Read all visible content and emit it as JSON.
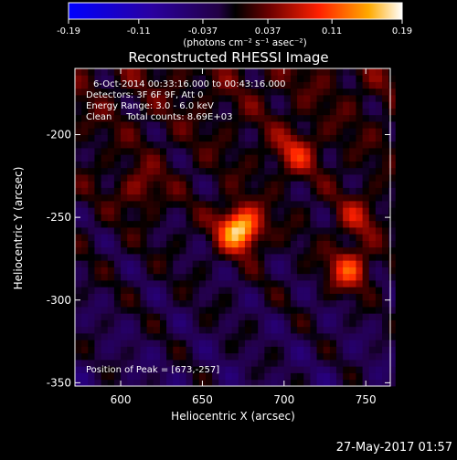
{
  "chart_data": {
    "type": "heatmap",
    "title": "Reconstructed RHESSI Image",
    "xlabel": "Heliocentric X (arcsec)",
    "ylabel": "Heliocentric Y (arcsec)",
    "xlim": [
      572,
      765
    ],
    "ylim": [
      -352,
      -160
    ],
    "xticks": [
      "600",
      "650",
      "700",
      "750"
    ],
    "xtick_values": [
      600,
      650,
      700,
      750
    ],
    "yticks": [
      "-200",
      "-250",
      "-300",
      "-350"
    ],
    "ytick_values": [
      -200,
      -250,
      -300,
      -350
    ],
    "colorbar": {
      "ticks": [
        "-0.19",
        "-0.11",
        "-0.037",
        "0.037",
        "0.11",
        "0.19"
      ],
      "tick_values": [
        -0.19,
        -0.11,
        -0.037,
        0.037,
        0.11,
        0.19
      ],
      "range": [
        -0.19,
        0.19
      ],
      "units": "(photons cm⁻² s⁻¹ asec⁻²)"
    },
    "annotations": [
      "6-Oct-2014 00:33:16.000 to 00:43:16.000",
      "Detectors: 3F 6F 9F, Att 0",
      "Energy Range: 3.0 - 6.0 keV",
      "Clean     Total counts: 8.69E+03",
      "Position of Peak = [673,-257]"
    ],
    "sources": [
      {
        "x": 673,
        "y": -257,
        "value": 0.19
      },
      {
        "x": 740,
        "y": -281,
        "value": 0.11
      },
      {
        "x": 707,
        "y": -211,
        "value": 0.07
      },
      {
        "x": 612,
        "y": -233,
        "value": 0.05
      },
      {
        "x": 745,
        "y": -250,
        "value": 0.06
      }
    ],
    "grid": false
  },
  "footer": {
    "timestamp": "27-May-2017 01:57"
  }
}
